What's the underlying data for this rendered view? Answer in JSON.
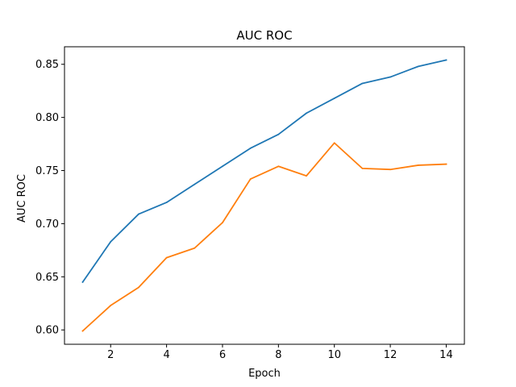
{
  "chart_data": {
    "type": "line",
    "title": "AUC ROC",
    "xlabel": "Epoch",
    "ylabel": "AUC ROC",
    "x": [
      1,
      2,
      3,
      4,
      5,
      6,
      7,
      8,
      9,
      10,
      11,
      12,
      13,
      14
    ],
    "series": [
      {
        "color": "#1f77b4",
        "values": [
          0.645,
          0.683,
          0.709,
          0.72,
          0.737,
          0.754,
          0.771,
          0.784,
          0.804,
          0.818,
          0.832,
          0.838,
          0.848,
          0.854
        ]
      },
      {
        "color": "#ff7f0e",
        "values": [
          0.599,
          0.623,
          0.64,
          0.668,
          0.677,
          0.701,
          0.742,
          0.754,
          0.745,
          0.776,
          0.752,
          0.751,
          0.755,
          0.756
        ]
      }
    ],
    "xlim": [
      0.35,
      14.65
    ],
    "ylim": [
      0.5865,
      0.8665
    ],
    "xticks": [
      2,
      4,
      6,
      8,
      10,
      12,
      14
    ],
    "yticks": [
      0.6,
      0.65,
      0.7,
      0.75,
      0.8,
      0.85
    ],
    "ytick_labels": [
      "0.60",
      "0.65",
      "0.70",
      "0.75",
      "0.80",
      "0.85"
    ],
    "grid": false,
    "legend": "none"
  }
}
